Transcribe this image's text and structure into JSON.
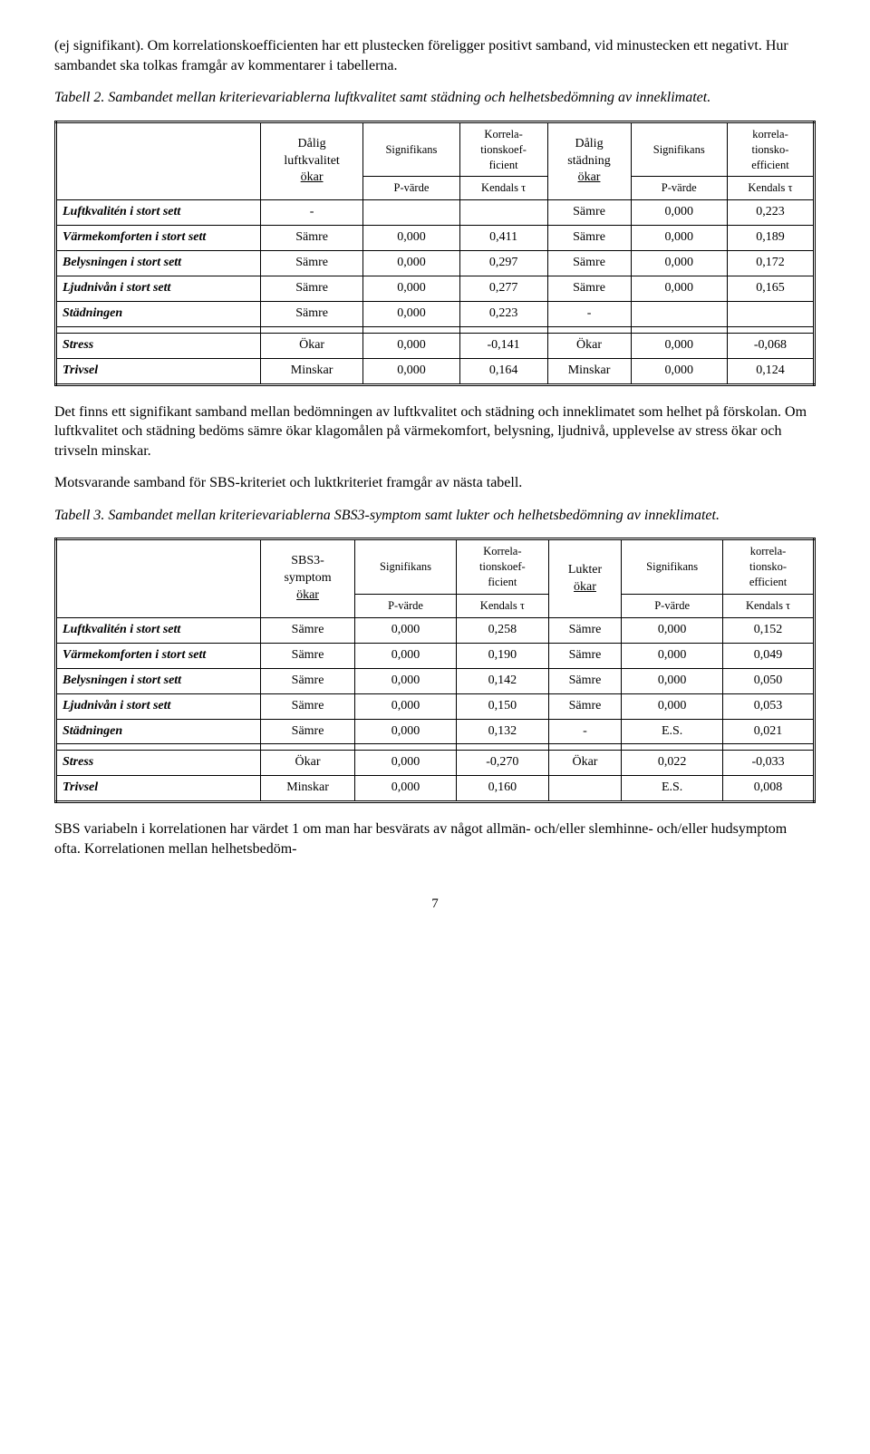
{
  "para1": "(ej signifikant). Om korrelationskoefficienten har ett plustecken föreligger positivt samband, vid minustecken ett negativt. Hur sambandet ska tolkas framgår av kommentarer i tabellerna.",
  "caption1": "Tabell 2. Sambandet mellan kriterievariablerna luftkvalitet samt städning och helhetsbedömning av inneklimatet.",
  "table1": {
    "head": {
      "c1a": "Dålig",
      "c1b": "luftkvalitet",
      "c1c": "ökar",
      "c2": "Signifikans",
      "c2b": "P-värde",
      "c3": "Korrela-",
      "c3b": "tionskoef-",
      "c3c": "ficient",
      "c3d": "Kendals τ",
      "c4a": "Dålig",
      "c4b": "städning",
      "c4c": "ökar",
      "c5": "Signifikans",
      "c5b": "P-värde",
      "c6": "korrela-",
      "c6b": "tionsko-",
      "c6c": "efficient",
      "c6d": "Kendals τ"
    },
    "rows": [
      {
        "label": "Luftkvalitén i stort sett",
        "v": [
          "-",
          "",
          "",
          "Sämre",
          "0,000",
          "0,223"
        ]
      },
      {
        "label": "Värmekomforten i stort sett",
        "v": [
          "Sämre",
          "0,000",
          "0,411",
          "Sämre",
          "0,000",
          "0,189"
        ]
      },
      {
        "label": "Belysningen i stort sett",
        "v": [
          "Sämre",
          "0,000",
          "0,297",
          "Sämre",
          "0,000",
          "0,172"
        ]
      },
      {
        "label": "Ljudnivån i stort sett",
        "v": [
          "Sämre",
          "0,000",
          "0,277",
          "Sämre",
          "0,000",
          "0,165"
        ]
      },
      {
        "label": "Städningen",
        "v": [
          "Sämre",
          "0,000",
          "0,223",
          "-",
          "",
          ""
        ]
      }
    ],
    "rows2": [
      {
        "label": "Stress",
        "v": [
          "Ökar",
          "0,000",
          "-0,141",
          "Ökar",
          "0,000",
          "-0,068"
        ]
      },
      {
        "label": "Trivsel",
        "v": [
          "Minskar",
          "0,000",
          "0,164",
          "Minskar",
          "0,000",
          "0,124"
        ]
      }
    ]
  },
  "para2": "Det finns ett signifikant samband mellan bedömningen av luftkvalitet och städning och inneklimatet som helhet på förskolan. Om luftkvalitet och städning bedöms sämre ökar klagomålen på värmekomfort, belysning, ljudnivå, upplevelse av stress ökar och trivseln minskar.",
  "para3": "Motsvarande samband för SBS-kriteriet och luktkriteriet framgår av nästa tabell.",
  "caption2": "Tabell 3. Sambandet mellan kriterievariablerna SBS3-symptom samt lukter och helhetsbedömning av inneklimatet.",
  "table2": {
    "head": {
      "c1a": "SBS3-",
      "c1b": "symptom",
      "c1c": "ökar",
      "c2": "Signifikans",
      "c2b": "P-värde",
      "c3": "Korrela-",
      "c3b": "tionskoef-",
      "c3c": "ficient",
      "c3d": "Kendals τ",
      "c4a": "Lukter",
      "c4c": "ökar",
      "c5": "Signifikans",
      "c5b": "P-värde",
      "c6": "korrela-",
      "c6b": "tionsko-",
      "c6c": "efficient",
      "c6d": "Kendals τ"
    },
    "rows": [
      {
        "label": "Luftkvalitén i stort sett",
        "v": [
          "Sämre",
          "0,000",
          "0,258",
          "Sämre",
          "0,000",
          "0,152"
        ]
      },
      {
        "label": "Värmekomforten i stort sett",
        "v": [
          "Sämre",
          "0,000",
          "0,190",
          "Sämre",
          "0,000",
          "0,049"
        ]
      },
      {
        "label": "Belysningen i stort sett",
        "v": [
          "Sämre",
          "0,000",
          "0,142",
          "Sämre",
          "0,000",
          "0,050"
        ]
      },
      {
        "label": "Ljudnivån i stort sett",
        "v": [
          "Sämre",
          "0,000",
          "0,150",
          "Sämre",
          "0,000",
          "0,053"
        ]
      },
      {
        "label": "Städningen",
        "v": [
          "Sämre",
          "0,000",
          "0,132",
          "-",
          "E.S.",
          "0,021"
        ]
      }
    ],
    "rows2": [
      {
        "label": "Stress",
        "v": [
          "Ökar",
          "0,000",
          "-0,270",
          "Ökar",
          "0,022",
          "-0,033"
        ]
      },
      {
        "label": "Trivsel",
        "v": [
          "Minskar",
          "0,000",
          "0,160",
          "",
          "E.S.",
          "0,008"
        ]
      }
    ]
  },
  "para4": "SBS variabeln i korrelationen har värdet 1 om man har besvärats av något allmän- och/eller slemhinne- och/eller hudsymptom ofta. Korrelationen mellan helhetsbedöm-",
  "pagenum": "7"
}
